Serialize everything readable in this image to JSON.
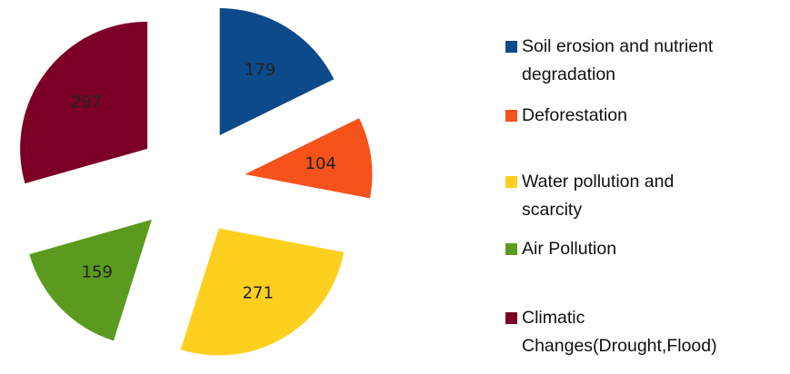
{
  "chart_data": {
    "type": "pie",
    "exploded": true,
    "categories": [
      "Soil  erosion and nutrient\ndegradation",
      "Deforestation",
      "Water pollution and\nscarcity",
      "Air Pollution",
      "Climatic\nChanges(Drought,Flood)"
    ],
    "values": [
      179,
      104,
      271,
      159,
      297
    ],
    "colors": [
      "#0d4a8a",
      "#f5521c",
      "#fdd020",
      "#5a9a1f",
      "#7c0026"
    ],
    "legend": "right"
  }
}
